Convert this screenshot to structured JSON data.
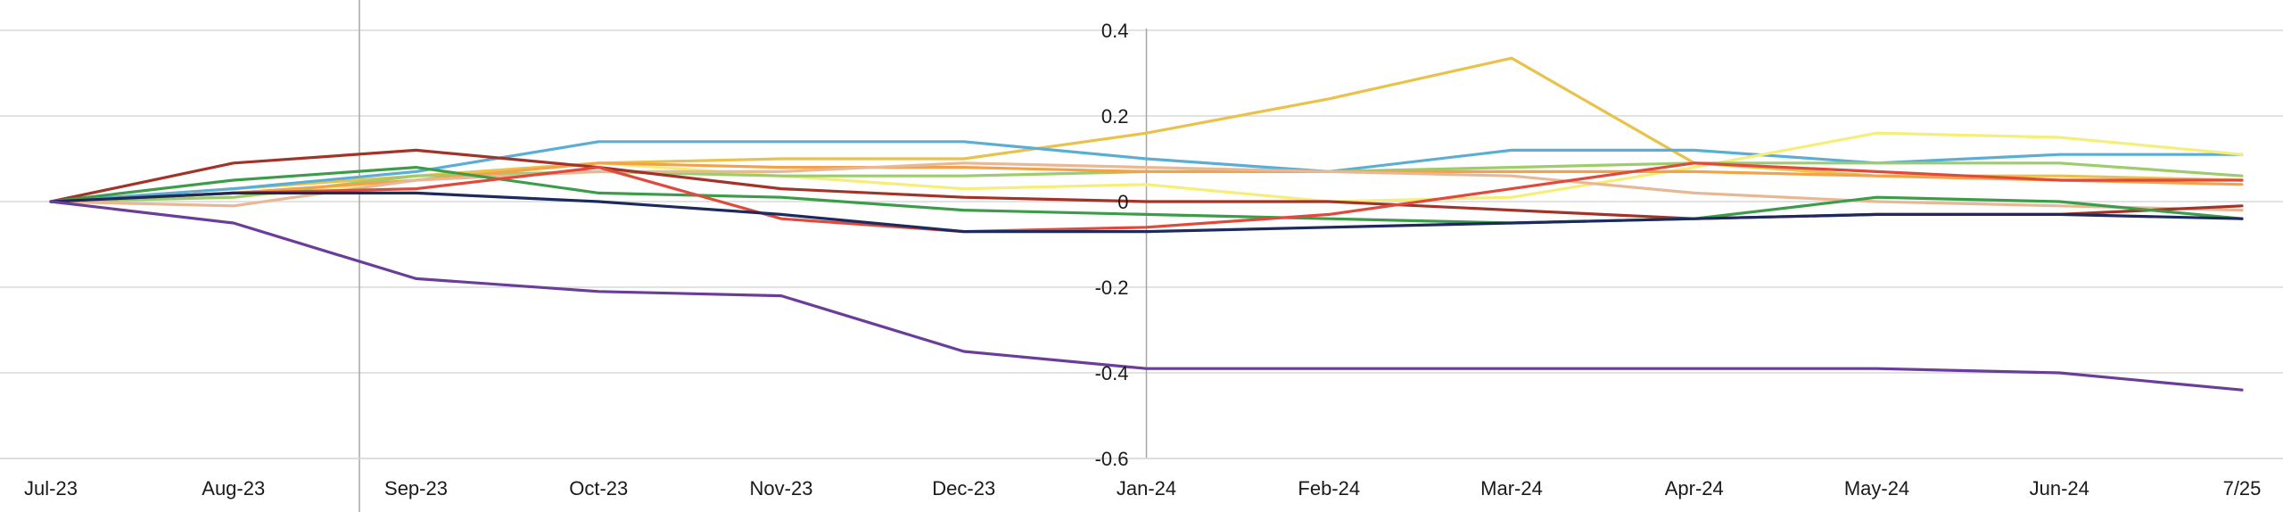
{
  "chart_data": {
    "type": "line",
    "title": "",
    "xlabel": "",
    "ylabel": "",
    "categories": [
      "Jul-23",
      "Aug-23",
      "Sep-23",
      "Oct-23",
      "Nov-23",
      "Dec-23",
      "Jan-24",
      "Feb-24",
      "Mar-24",
      "Apr-24",
      "May-24",
      "Jun-24",
      "7/25"
    ],
    "ylim": [
      -0.6,
      0.4
    ],
    "yticks": [
      0.4,
      0.2,
      0,
      -0.2,
      -0.4,
      -0.6
    ],
    "ytick_labels": [
      "0.4",
      "0.2",
      "0",
      "-0.2",
      "-0.4",
      "-0.6"
    ],
    "y_axis_at_category": "Jan-24",
    "vertical_marker_at_category": "Sep-23",
    "grid": true,
    "legend": "none",
    "series": [
      {
        "color": "#e8c24a",
        "values": [
          0,
          0.03,
          0.06,
          0.09,
          0.1,
          0.1,
          0.16,
          0.24,
          0.335,
          0.09,
          0.06,
          0.06,
          0.05
        ]
      },
      {
        "color": "#5aaed6",
        "values": [
          0,
          0.03,
          0.07,
          0.14,
          0.14,
          0.14,
          0.1,
          0.07,
          0.12,
          0.12,
          0.09,
          0.11,
          0.11
        ]
      },
      {
        "color": "#f5ee7a",
        "values": [
          0,
          0.01,
          0.05,
          0.09,
          0.06,
          0.03,
          0.04,
          0.0,
          0.01,
          0.08,
          0.16,
          0.15,
          0.11
        ]
      },
      {
        "color": "#9ccc6c",
        "values": [
          0,
          0.01,
          0.06,
          0.07,
          0.06,
          0.06,
          0.07,
          0.07,
          0.08,
          0.09,
          0.09,
          0.09,
          0.06
        ]
      },
      {
        "color": "#f3a24a",
        "values": [
          0,
          0.02,
          0.05,
          0.09,
          0.08,
          0.08,
          0.07,
          0.07,
          0.07,
          0.07,
          0.06,
          0.05,
          0.04
        ]
      },
      {
        "color": "#e8b896",
        "values": [
          0,
          -0.01,
          0.05,
          0.07,
          0.07,
          0.09,
          0.08,
          0.07,
          0.06,
          0.02,
          0.0,
          -0.01,
          -0.02
        ]
      },
      {
        "color": "#a23328",
        "values": [
          0,
          0.09,
          0.12,
          0.08,
          0.03,
          0.01,
          0.0,
          0.0,
          -0.02,
          -0.04,
          -0.03,
          -0.03,
          -0.01
        ]
      },
      {
        "color": "#3d9c4a",
        "values": [
          0,
          0.05,
          0.08,
          0.02,
          0.01,
          -0.02,
          -0.03,
          -0.04,
          -0.05,
          -0.04,
          0.01,
          0.0,
          -0.04
        ]
      },
      {
        "color": "#e04a3c",
        "values": [
          0,
          0.02,
          0.03,
          0.08,
          -0.04,
          -0.07,
          -0.06,
          -0.03,
          0.03,
          0.09,
          0.07,
          0.05,
          0.05
        ]
      },
      {
        "color": "#1c2a5e",
        "values": [
          0,
          0.02,
          0.02,
          0.0,
          -0.03,
          -0.07,
          -0.07,
          -0.06,
          -0.05,
          -0.04,
          -0.03,
          -0.03,
          -0.04
        ]
      },
      {
        "color": "#6a3d9a",
        "values": [
          0,
          -0.05,
          -0.18,
          -0.21,
          -0.22,
          -0.35,
          -0.39,
          -0.39,
          -0.39,
          -0.39,
          -0.39,
          -0.4,
          -0.44
        ]
      }
    ]
  }
}
